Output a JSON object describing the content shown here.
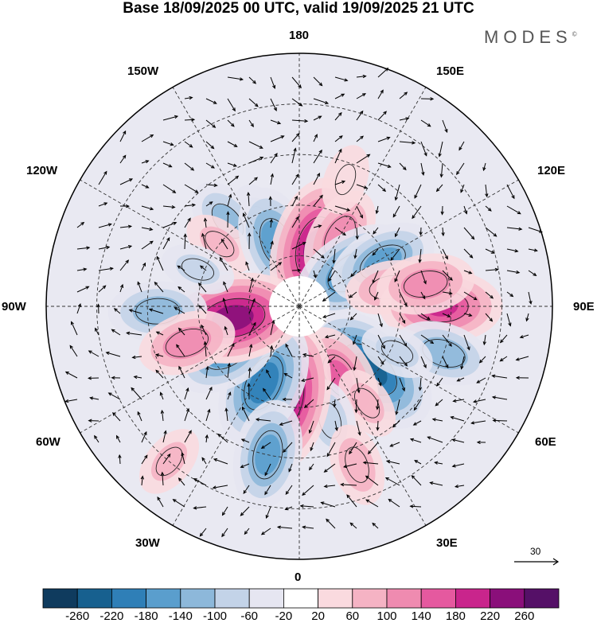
{
  "title": "Base 18/09/2025 00 UTC, valid 19/09/2025 21 UTC",
  "brand": {
    "name": "MODES",
    "mark": "©"
  },
  "longitude_labels": {
    "top": "180",
    "bottom": "0",
    "left": "90W",
    "right": "90E",
    "nw_upper": "150W",
    "ne_upper": "150E",
    "nw_lower": "120W",
    "ne_lower": "120E",
    "sw_upper": "60W",
    "se_upper": "60E",
    "sw_lower": "30W",
    "se_lower": "30E"
  },
  "reference_vector": {
    "value": "30"
  },
  "colorbar": {
    "ticks": [
      "-260",
      "-220",
      "-180",
      "-140",
      "-100",
      "-60",
      "-20",
      "20",
      "60",
      "100",
      "140",
      "180",
      "220",
      "260"
    ],
    "colors": [
      "#0f3b5e",
      "#17608f",
      "#2f7fb7",
      "#5a9ecd",
      "#8db8da",
      "#c3d3e8",
      "#e6e6f1",
      "#ffffff",
      "#fadadf",
      "#f5b3c4",
      "#ef8bb0",
      "#e5599f",
      "#c9258c",
      "#8a0f7a",
      "#551067"
    ]
  },
  "anomalies": [
    {
      "lon": -155,
      "lat": 63,
      "value": -80
    },
    {
      "lon": -140,
      "lat": 57,
      "value": -100
    },
    {
      "lon": -128,
      "lat": 60,
      "value": 60
    },
    {
      "lon": -160,
      "lat": 70,
      "value": -160
    },
    {
      "lon": 165,
      "lat": 72,
      "value": 230
    },
    {
      "lon": 150,
      "lat": 66,
      "value": 120
    },
    {
      "lon": 123,
      "lat": 71,
      "value": -190
    },
    {
      "lon": 118,
      "lat": 62,
      "value": -150
    },
    {
      "lon": 102,
      "lat": 63,
      "value": 90
    },
    {
      "lon": 90,
      "lat": 48,
      "value": 180
    },
    {
      "lon": 100,
      "lat": 52,
      "value": 120
    },
    {
      "lon": 72,
      "lat": 45,
      "value": -120
    },
    {
      "lon": 48,
      "lat": 62,
      "value": -240
    },
    {
      "lon": 30,
      "lat": 66,
      "value": 140
    },
    {
      "lon": 35,
      "lat": 55,
      "value": 60
    },
    {
      "lon": 15,
      "lat": 55,
      "value": -80
    },
    {
      "lon": 20,
      "lat": 40,
      "value": 80
    },
    {
      "lon": -10,
      "lat": 63,
      "value": 260
    },
    {
      "lon": -25,
      "lat": 65,
      "value": -200
    },
    {
      "lon": -12,
      "lat": 45,
      "value": -150
    },
    {
      "lon": -40,
      "lat": 30,
      "value": 60
    },
    {
      "lon": -58,
      "lat": 65,
      "value": -160
    },
    {
      "lon": -65,
      "lat": 72,
      "value": 100
    },
    {
      "lon": -80,
      "lat": 70,
      "value": 240
    },
    {
      "lon": -88,
      "lat": 48,
      "value": -120
    },
    {
      "lon": -72,
      "lat": 55,
      "value": 120
    },
    {
      "lon": -110,
      "lat": 58,
      "value": -60
    },
    {
      "lon": 160,
      "lat": 50,
      "value": 50
    },
    {
      "lon": 65,
      "lat": 58,
      "value": -60
    }
  ]
}
